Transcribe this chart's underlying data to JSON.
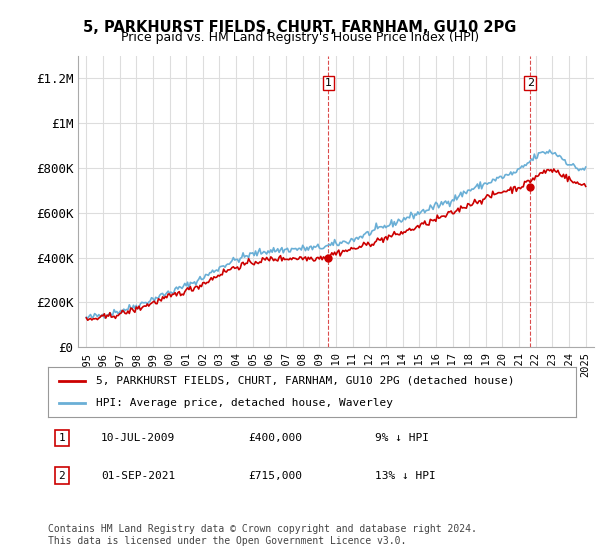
{
  "title": "5, PARKHURST FIELDS, CHURT, FARNHAM, GU10 2PG",
  "subtitle": "Price paid vs. HM Land Registry's House Price Index (HPI)",
  "xlabel": "",
  "ylabel": "",
  "ylim": [
    0,
    1300000
  ],
  "yticks": [
    0,
    200000,
    400000,
    600000,
    800000,
    1000000,
    1200000
  ],
  "ytick_labels": [
    "£0",
    "£200K",
    "£400K",
    "£600K",
    "£800K",
    "£1M",
    "£1.2M"
  ],
  "sale1_date_idx": 14.5,
  "sale1_price": 400000,
  "sale1_label": "1",
  "sale2_date_idx": 26.6,
  "sale2_price": 715000,
  "sale2_label": "2",
  "hpi_color": "#6aafd6",
  "price_color": "#cc0000",
  "dashed_color": "#cc0000",
  "background_color": "#ffffff",
  "grid_color": "#dddddd",
  "legend_line1": "5, PARKHURST FIELDS, CHURT, FARNHAM, GU10 2PG (detached house)",
  "legend_line2": "HPI: Average price, detached house, Waverley",
  "note1_label": "1",
  "note1_date": "10-JUL-2009",
  "note1_price": "£400,000",
  "note1_hpi": "9% ↓ HPI",
  "note2_label": "2",
  "note2_date": "01-SEP-2021",
  "note2_price": "£715,000",
  "note2_hpi": "13% ↓ HPI",
  "footer": "Contains HM Land Registry data © Crown copyright and database right 2024.\nThis data is licensed under the Open Government Licence v3.0."
}
